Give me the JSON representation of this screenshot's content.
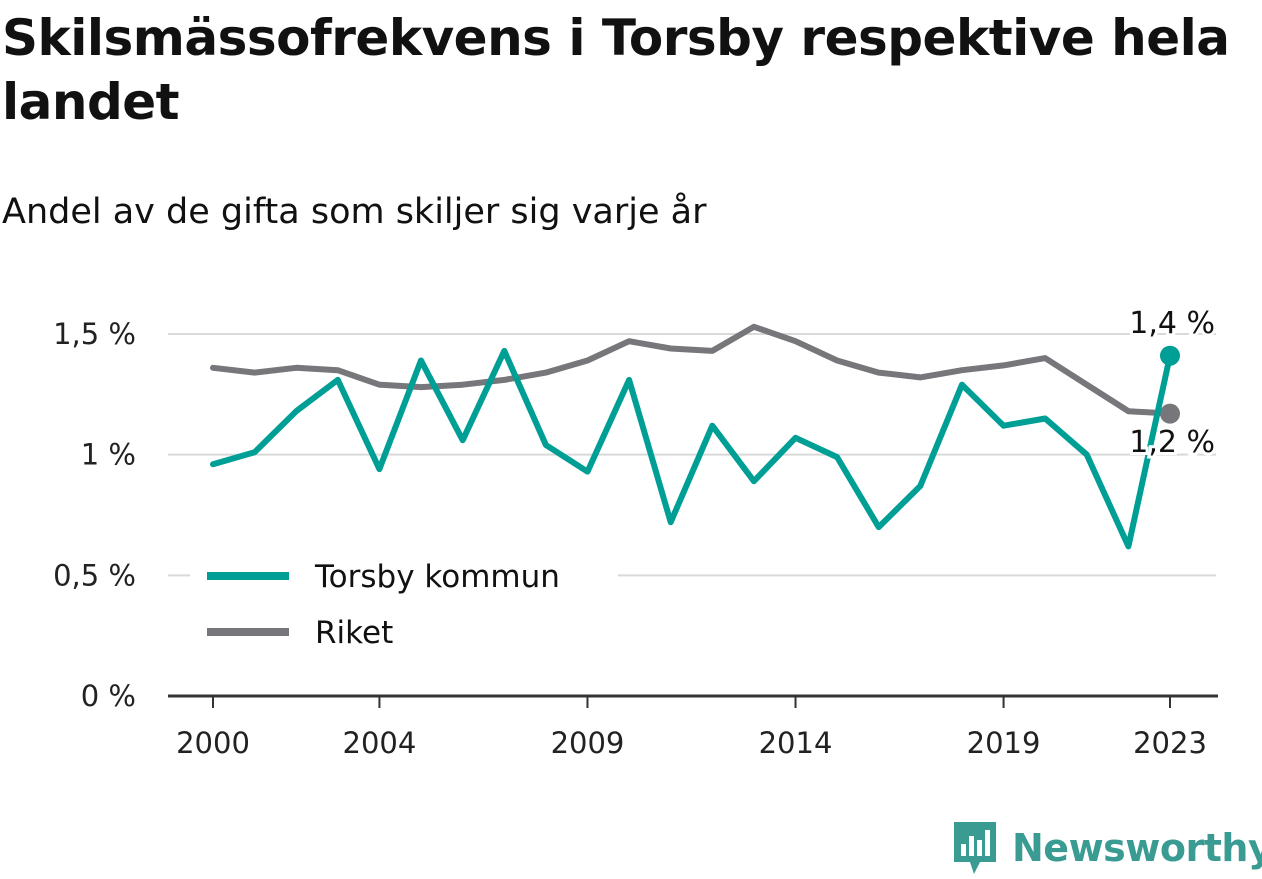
{
  "title": "Skilsmässofrekvens i Torsby respektive hela landet",
  "subtitle": "Andel av de gifta som skiljer sig varje år",
  "brand": {
    "name": "Newsworthy",
    "icon": "newsworthy-logo-icon",
    "color": "#3a9b93"
  },
  "chart_data": {
    "type": "line",
    "x": [
      2000,
      2001,
      2002,
      2003,
      2004,
      2005,
      2006,
      2007,
      2008,
      2009,
      2010,
      2011,
      2012,
      2013,
      2014,
      2015,
      2016,
      2017,
      2018,
      2019,
      2020,
      2021,
      2022,
      2023
    ],
    "x_ticks": [
      2000,
      2004,
      2009,
      2014,
      2019,
      2023
    ],
    "x_tick_labels": [
      "2000",
      "2004",
      "2009",
      "2014",
      "2019",
      "2023"
    ],
    "ylim": [
      0,
      1.5
    ],
    "y_ticks": [
      0,
      0.5,
      1,
      1.5
    ],
    "y_tick_labels": [
      "0 %",
      "0,5 %",
      "1 %",
      "1,5 %"
    ],
    "grid": true,
    "legend_position": "bottom-left",
    "series": [
      {
        "name": "Torsby kommun",
        "color": "#009f95",
        "values": [
          0.96,
          1.01,
          1.18,
          1.31,
          0.94,
          1.39,
          1.06,
          1.43,
          1.04,
          0.93,
          1.31,
          0.72,
          1.12,
          0.89,
          1.07,
          0.99,
          0.7,
          0.87,
          1.29,
          1.12,
          1.15,
          1.0,
          0.62,
          1.41
        ],
        "end_label": "1,4 %"
      },
      {
        "name": "Riket",
        "color": "#76767b",
        "values": [
          1.36,
          1.34,
          1.36,
          1.35,
          1.29,
          1.28,
          1.29,
          1.31,
          1.34,
          1.39,
          1.47,
          1.44,
          1.43,
          1.53,
          1.47,
          1.39,
          1.34,
          1.32,
          1.35,
          1.37,
          1.4,
          1.29,
          1.18,
          1.17
        ],
        "end_label": "1,2 %"
      }
    ]
  }
}
